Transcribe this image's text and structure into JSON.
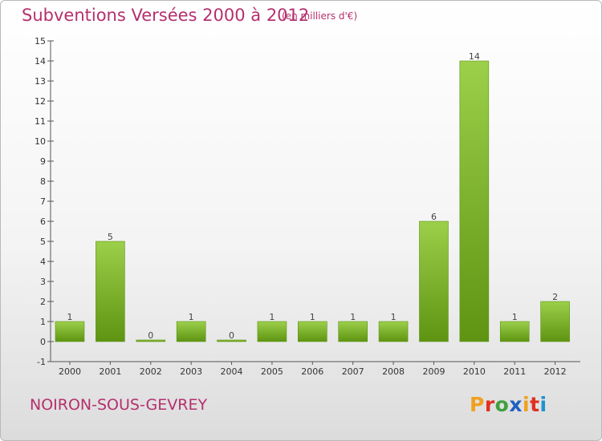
{
  "header": {
    "title": "Subventions Versées 2000 à 2012",
    "unit": "(en milliers d'€)"
  },
  "footer": {
    "commune": "NOIRON-SOUS-GEVREY",
    "logo": [
      "P",
      "r",
      "o",
      "x",
      "i",
      "t",
      "i"
    ]
  },
  "colors": {
    "title": "#b5306e",
    "bar_light": "#9ccf4a",
    "bar_dark": "#5e9412",
    "logo": [
      "#f0a020",
      "#e03020",
      "#40a040",
      "#2060c0",
      "#f0a020",
      "#e03020",
      "#2090d0"
    ]
  },
  "chart_data": {
    "type": "bar",
    "title": "Subventions Versées 2000 à 2012",
    "xlabel": "",
    "ylabel": "",
    "categories": [
      "2000",
      "2001",
      "2002",
      "2003",
      "2004",
      "2005",
      "2006",
      "2007",
      "2008",
      "2009",
      "2010",
      "2011",
      "2012"
    ],
    "values": [
      1,
      5,
      0,
      1,
      0,
      1,
      1,
      1,
      1,
      6,
      14,
      1,
      2
    ],
    "ylim": [
      -1,
      15
    ],
    "yticks": [
      -1,
      0,
      1,
      2,
      3,
      4,
      5,
      6,
      7,
      8,
      9,
      10,
      11,
      12,
      13,
      14,
      15
    ],
    "grid": false,
    "legend": "none"
  }
}
